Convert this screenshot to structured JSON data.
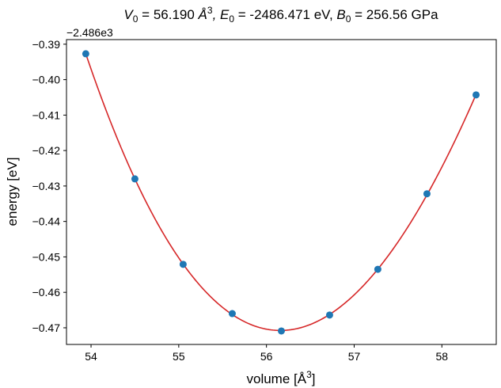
{
  "chart_data": {
    "type": "line",
    "title": {
      "v_sym": "V",
      "v_sub": "0",
      "v_text": " = 56.190 ",
      "v_unit": "Å",
      "v_sup": "3",
      "e_sym": ", E",
      "e_sub": "0",
      "e_text": " = -2486.471 eV, ",
      "b_sym": "B",
      "b_sub": "0",
      "b_text": " = 256.56 GPa"
    },
    "offset_label": "−2.486e3",
    "xlabel": "volume [Å",
    "xlabel_sup": "3",
    "xlabel_end": "]",
    "ylabel": "energy [eV]",
    "xlim": [
      53.72,
      58.62
    ],
    "ylim": [
      -0.4747,
      -0.3887
    ],
    "xticks": [
      54,
      55,
      56,
      57,
      58
    ],
    "xtick_labels": [
      "54",
      "55",
      "56",
      "57",
      "58"
    ],
    "yticks": [
      -0.39,
      -0.4,
      -0.41,
      -0.42,
      -0.43,
      -0.44,
      -0.45,
      -0.46,
      -0.47
    ],
    "ytick_labels": [
      "−0.39",
      "−0.40",
      "−0.41",
      "−0.42",
      "−0.43",
      "−0.44",
      "−0.45",
      "−0.46",
      "−0.47"
    ],
    "grid": false,
    "series": [
      {
        "kind": "scatter",
        "color": "#1f77b4",
        "x": [
          53.94,
          54.5,
          55.05,
          55.61,
          56.17,
          56.72,
          57.27,
          57.83,
          58.39
        ],
        "y": [
          -0.3927,
          -0.428,
          -0.4521,
          -0.466,
          -0.4709,
          -0.4664,
          -0.4535,
          -0.4322,
          -0.4043
        ]
      },
      {
        "kind": "fit-line",
        "color": "#d62728"
      }
    ]
  }
}
